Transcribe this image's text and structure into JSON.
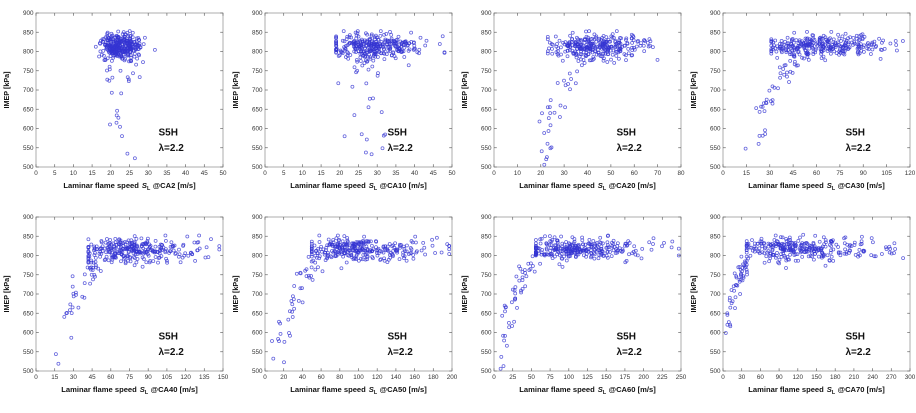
{
  "figure": {
    "background": "#ffffff",
    "marker_color": "#3535d2",
    "axis_color": "#999999",
    "tick_color": "#666666",
    "tick_label_color": "#333333",
    "label_color": "#111111",
    "annotation_color": "#111111"
  },
  "chart_data": [
    {
      "type": "scatter",
      "id": "CA2",
      "xlabel": {
        "prefix": "Laminar flame speed",
        "sym": "S",
        "sub": "L",
        "suffix": "@CA2 [m/s]"
      },
      "ylabel": "IMEP [kPa]",
      "annotation": [
        "S5H",
        "λ=2.2"
      ],
      "xlim": [
        0,
        50
      ],
      "xtick_step": 5,
      "ylim": [
        500,
        900
      ],
      "ytick_step": 50,
      "legend": "none",
      "grid": "off",
      "marker": "open-circle",
      "seed": 101,
      "cloud": {
        "n": 320,
        "x_mean": 22.5,
        "x_sd": 2.3,
        "x_skew": 1.25,
        "x_clip": [
          16,
          33
        ],
        "y_mean": 813,
        "y_sd": 16,
        "y_clip": [
          735,
          853
        ]
      },
      "tail": {
        "mode": "vertical",
        "n": 30,
        "x_mean": 23.5,
        "x_sd": 2.4,
        "y_top": 778,
        "y_bot": 508,
        "pow": 2.1
      }
    },
    {
      "type": "scatter",
      "id": "CA10",
      "xlabel": {
        "prefix": "Laminar flame speed",
        "sym": "S",
        "sub": "L",
        "suffix": "@CA10 [m/s]"
      },
      "ylabel": "IMEP [kPa]",
      "annotation": [
        "S5H",
        "λ=2.2"
      ],
      "xlim": [
        0,
        50
      ],
      "xtick_step": 5,
      "ylim": [
        500,
        900
      ],
      "ytick_step": 50,
      "legend": "none",
      "grid": "off",
      "marker": "open-circle",
      "seed": 102,
      "cloud": {
        "n": 320,
        "x_mean": 28.5,
        "x_sd": 5.2,
        "x_skew": 1.3,
        "x_clip": [
          19,
          48
        ],
        "y_mean": 812,
        "y_sd": 16,
        "y_clip": [
          735,
          853
        ]
      },
      "tail": {
        "mode": "vertical",
        "n": 28,
        "x_mean": 27,
        "x_sd": 3.2,
        "y_top": 778,
        "y_bot": 508,
        "pow": 2.1
      }
    },
    {
      "type": "scatter",
      "id": "CA20",
      "xlabel": {
        "prefix": "Laminar flame speed",
        "sym": "S",
        "sub": "L",
        "suffix": "@CA20 [m/s]"
      },
      "ylabel": "IMEP [kPa]",
      "annotation": [
        "S5H",
        "λ=2.2"
      ],
      "xlim": [
        0,
        80
      ],
      "xtick_step": 10,
      "ylim": [
        500,
        900
      ],
      "ytick_step": 50,
      "legend": "none",
      "grid": "off",
      "marker": "open-circle",
      "seed": 103,
      "cloud": {
        "n": 310,
        "x_mean": 42,
        "x_sd": 8.5,
        "x_skew": 1.35,
        "x_clip": [
          23,
          77
        ],
        "y_mean": 812,
        "y_sd": 16,
        "y_clip": [
          730,
          853
        ]
      },
      "tail": {
        "mode": "curve",
        "n": 30,
        "anchors": [
          [
            21,
            512
          ],
          [
            22.5,
            568
          ],
          [
            24,
            618
          ],
          [
            26,
            662
          ],
          [
            29,
            702
          ],
          [
            33,
            728
          ]
        ],
        "pow": 1.6,
        "x_jit": 2.2,
        "y_jit": 15
      }
    },
    {
      "type": "scatter",
      "id": "CA30",
      "xlabel": {
        "prefix": "Laminar flame speed",
        "sym": "S",
        "sub": "L",
        "suffix": "@CA30 [m/s]"
      },
      "ylabel": "IMEP [kPa]",
      "annotation": [
        "S5H",
        "λ=2.2"
      ],
      "xlim": [
        0,
        120
      ],
      "xtick_step": 15,
      "ylim": [
        500,
        900
      ],
      "ytick_step": 50,
      "legend": "none",
      "grid": "off",
      "marker": "open-circle",
      "seed": 104,
      "cloud": {
        "n": 300,
        "x_mean": 60,
        "x_sd": 15,
        "x_skew": 1.4,
        "x_clip": [
          31,
          116
        ],
        "y_mean": 814,
        "y_sd": 15,
        "y_clip": [
          740,
          851
        ]
      },
      "tail": {
        "mode": "curve",
        "n": 42,
        "anchors": [
          [
            18,
            513
          ],
          [
            23,
            570
          ],
          [
            26,
            624
          ],
          [
            29,
            667
          ],
          [
            33,
            707
          ],
          [
            38,
            747
          ],
          [
            45,
            781
          ]
        ],
        "pow": 1.7,
        "x_jit": 2.8,
        "y_jit": 16
      }
    },
    {
      "type": "scatter",
      "id": "CA40",
      "xlabel": {
        "prefix": "Laminar flame speed",
        "sym": "S",
        "sub": "L",
        "suffix": "@CA40 [m/s]"
      },
      "ylabel": "IMEP [kPa]",
      "annotation": [
        "S5H",
        "λ=2.2"
      ],
      "xlim": [
        0,
        150
      ],
      "xtick_step": 15,
      "ylim": [
        500,
        900
      ],
      "ytick_step": 50,
      "legend": "none",
      "grid": "off",
      "marker": "open-circle",
      "seed": 105,
      "cloud": {
        "n": 300,
        "x_mean": 80,
        "x_sd": 22,
        "x_skew": 1.35,
        "x_clip": [
          42,
          147
        ],
        "y_mean": 815,
        "y_sd": 15,
        "y_clip": [
          740,
          852
        ]
      },
      "tail": {
        "mode": "curve",
        "n": 42,
        "anchors": [
          [
            17,
            512
          ],
          [
            21,
            574
          ],
          [
            24,
            627
          ],
          [
            28,
            667
          ],
          [
            33,
            704
          ],
          [
            40,
            741
          ],
          [
            48,
            777
          ]
        ],
        "pow": 1.7,
        "x_jit": 3.2,
        "y_jit": 16
      }
    },
    {
      "type": "scatter",
      "id": "CA50",
      "xlabel": {
        "prefix": "Laminar flame speed",
        "sym": "S",
        "sub": "L",
        "suffix": "@CA50 [m/s]"
      },
      "ylabel": "IMEP [kPa]",
      "annotation": [
        "S5H",
        "λ=2.2"
      ],
      "xlim": [
        0,
        200
      ],
      "xtick_step": 20,
      "ylim": [
        500,
        900
      ],
      "ytick_step": 50,
      "legend": "none",
      "grid": "off",
      "marker": "open-circle",
      "seed": 106,
      "cloud": {
        "n": 300,
        "x_mean": 100,
        "x_sd": 29,
        "x_skew": 1.35,
        "x_clip": [
          50,
          197
        ],
        "y_mean": 816,
        "y_sd": 14,
        "y_clip": [
          742,
          852
        ]
      },
      "tail": {
        "mode": "curve",
        "n": 44,
        "anchors": [
          [
            13,
            512
          ],
          [
            17,
            567
          ],
          [
            21,
            619
          ],
          [
            26,
            659
          ],
          [
            32,
            701
          ],
          [
            41,
            741
          ],
          [
            52,
            777
          ]
        ],
        "pow": 1.7,
        "x_jit": 3.8,
        "y_jit": 16
      }
    },
    {
      "type": "scatter",
      "id": "CA60",
      "xlabel": {
        "prefix": "Laminar flame speed",
        "sym": "S",
        "sub": "L",
        "suffix": "@CA60 [m/s]"
      },
      "ylabel": "IMEP [kPa]",
      "annotation": [
        "S5H",
        "λ=2.2"
      ],
      "xlim": [
        0,
        250
      ],
      "xtick_step": 25,
      "ylim": [
        500,
        900
      ],
      "ytick_step": 50,
      "legend": "none",
      "grid": "off",
      "marker": "open-circle",
      "seed": 107,
      "cloud": {
        "n": 300,
        "x_mean": 115,
        "x_sd": 37,
        "x_skew": 1.4,
        "x_clip": [
          56,
          247
        ],
        "y_mean": 817,
        "y_sd": 14,
        "y_clip": [
          742,
          852
        ]
      },
      "tail": {
        "mode": "curve",
        "n": 46,
        "anchors": [
          [
            10,
            509
          ],
          [
            13,
            563
          ],
          [
            17,
            613
          ],
          [
            22,
            660
          ],
          [
            28,
            703
          ],
          [
            37,
            743
          ],
          [
            50,
            779
          ]
        ],
        "pow": 1.7,
        "x_jit": 4.2,
        "y_jit": 16
      }
    },
    {
      "type": "scatter",
      "id": "CA70",
      "xlabel": {
        "prefix": "Laminar flame speed",
        "sym": "S",
        "sub": "L",
        "suffix": "@CA70 [m/s]"
      },
      "ylabel": "IMEP [kPa]",
      "annotation": [
        "S5H",
        "λ=2.2"
      ],
      "xlim": [
        0,
        300
      ],
      "xtick_step": 30,
      "ylim": [
        500,
        900
      ],
      "ytick_step": 50,
      "legend": "none",
      "grid": "off",
      "marker": "open-circle",
      "seed": 108,
      "cloud": {
        "n": 300,
        "x_mean": 118,
        "x_sd": 45,
        "x_skew": 1.45,
        "x_clip": [
          38,
          292
        ],
        "y_mean": 817,
        "y_sd": 14,
        "y_clip": [
          745,
          854
        ]
      },
      "tail": {
        "mode": "curve",
        "n": 48,
        "anchors": [
          [
            8,
            589
          ],
          [
            10.5,
            633
          ],
          [
            13.5,
            671
          ],
          [
            17.5,
            701
          ],
          [
            22,
            727
          ],
          [
            28,
            751
          ],
          [
            37,
            777
          ]
        ],
        "pow": 1.6,
        "x_jit": 3.2,
        "y_jit": 15
      }
    }
  ]
}
